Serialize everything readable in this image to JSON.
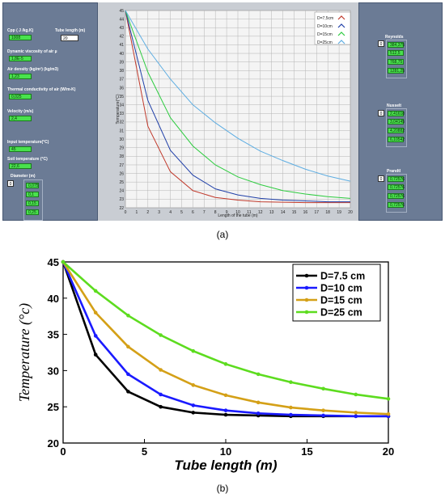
{
  "captions": {
    "a": "(a)",
    "b": "(b)"
  },
  "colors": {
    "panel_bg": "#6b7b95",
    "indicator_green": "#49e24d",
    "chart_a_bg": "#c9cdd3"
  },
  "left_panel": {
    "cpp_label": "Cpp ( J /kg.K)",
    "cpp_value": "1008",
    "tube_length_label": "Tube length (m)",
    "tube_length_value": "20",
    "viscosity_label": "Dynamic viscosity of air µ",
    "viscosity_value": "1,8E-5",
    "density_label": "Air density (kg/m³) (kg/m3)",
    "density_value": "1,23",
    "conductivity_label": "Thermal conductivity of air (W/m-K)",
    "conductivity_value": "0,025",
    "velocity_label": "Velocity (m/s)",
    "velocity_value": "2,4",
    "input_temp_label": "Input temperature(°C)",
    "input_temp_value": "45",
    "soil_temp_label": "Soil temperature (°C)",
    "soil_temp_value": "22,6",
    "diameter_label": "Diameter (m)",
    "diameter_index": "0",
    "diameters": [
      "0,075",
      "0,1",
      "0,15",
      "0,25"
    ]
  },
  "right_panel": {
    "reynolds_label": "Reynolds",
    "reynolds_index": "0",
    "reynolds": [
      "384,375",
      "512,5",
      "768,75",
      "1281,25"
    ],
    "nusselt_label": "Nusselt",
    "nusselt_index": "0",
    "nusselt": [
      "2,41618",
      "3,04145",
      "4,20882",
      "6,10542"
    ],
    "prandtl_label": "Prandtl",
    "prandtl_index": "0",
    "prandtl": [
      "0,72576",
      "0,72576",
      "0,72576",
      "0,72576"
    ]
  },
  "chart_data": [
    {
      "type": "line",
      "xlabel": "Length of the tube (m)",
      "ylabel": "Temperature(°C)",
      "xlim": [
        0,
        20
      ],
      "ylim": [
        22,
        45
      ],
      "xticks": [
        0,
        1,
        2,
        3,
        4,
        5,
        6,
        7,
        8,
        9,
        10,
        11,
        12,
        13,
        14,
        15,
        16,
        17,
        18,
        19,
        20
      ],
      "yticks": [
        22,
        23,
        24,
        25,
        26,
        27,
        28,
        29,
        30,
        31,
        32,
        33,
        34,
        35,
        36,
        37,
        38,
        39,
        40,
        41,
        42,
        43,
        44,
        45
      ],
      "grid": true,
      "legend_position": "top-right",
      "x": [
        0,
        2,
        4,
        6,
        8,
        10,
        12,
        14,
        16,
        18,
        20
      ],
      "series": [
        {
          "name": "D=7,5cm",
          "color": "#c0392b",
          "values": [
            45,
            31.5,
            26.2,
            24.0,
            23.2,
            22.9,
            22.7,
            22.65,
            22.6,
            22.6,
            22.6
          ]
        },
        {
          "name": "D=10cm",
          "color": "#1f3fa8",
          "values": [
            45,
            34.5,
            28.7,
            25.8,
            24.2,
            23.5,
            23.1,
            22.9,
            22.8,
            22.7,
            22.7
          ]
        },
        {
          "name": "D=15cm",
          "color": "#2ecc40",
          "values": [
            45,
            37.8,
            32.5,
            29.2,
            27.0,
            25.6,
            24.7,
            24.0,
            23.6,
            23.3,
            23.1
          ]
        },
        {
          "name": "D=25cm",
          "color": "#5dade2",
          "values": [
            45,
            40.5,
            37.0,
            34.0,
            31.9,
            30.1,
            28.6,
            27.5,
            26.5,
            25.7,
            25.1
          ]
        }
      ]
    },
    {
      "type": "line",
      "xlabel": "Tube length (m)",
      "ylabel": "Temperature (°c)",
      "xlim": [
        0,
        20
      ],
      "ylim": [
        20,
        45
      ],
      "xticks": [
        0,
        5,
        10,
        15,
        20
      ],
      "yticks": [
        20,
        25,
        30,
        35,
        40,
        45
      ],
      "grid": false,
      "legend_position": "top-right",
      "x": [
        0,
        2,
        4,
        6,
        8,
        10,
        12,
        14,
        16,
        18,
        20
      ],
      "series": [
        {
          "name": "D=7.5 cm",
          "color": "#000000",
          "values": [
            45,
            32.2,
            27.1,
            25.0,
            24.2,
            23.9,
            23.8,
            23.7,
            23.7,
            23.7,
            23.7
          ]
        },
        {
          "name": "D=10 cm",
          "color": "#1a1aff",
          "values": [
            45,
            34.8,
            29.5,
            26.7,
            25.2,
            24.5,
            24.1,
            23.9,
            23.8,
            23.7,
            23.7
          ]
        },
        {
          "name": "D=15 cm",
          "color": "#d4a017",
          "values": [
            45,
            38.0,
            33.3,
            30.1,
            28.0,
            26.6,
            25.6,
            24.9,
            24.5,
            24.2,
            24.0
          ]
        },
        {
          "name": "D=25 cm",
          "color": "#5ddc1f",
          "values": [
            45,
            41.0,
            37.6,
            34.9,
            32.7,
            30.9,
            29.5,
            28.4,
            27.5,
            26.7,
            26.1
          ]
        }
      ]
    }
  ]
}
